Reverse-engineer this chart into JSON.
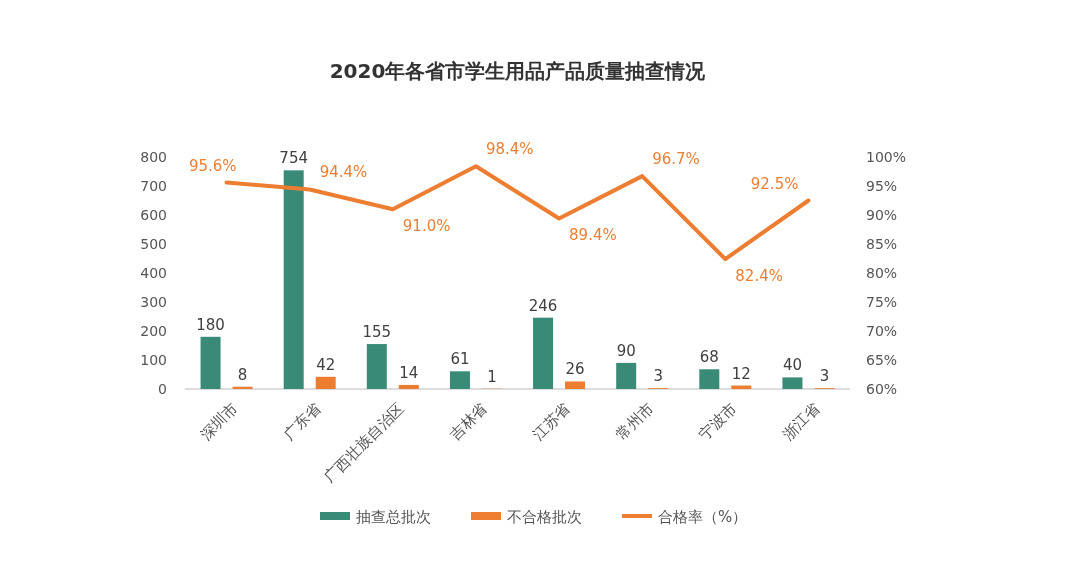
{
  "chart_data": {
    "type": "bar",
    "title": "2020年各省市学生用品产品质量抽查情况",
    "categories": [
      "深圳市",
      "广东省",
      "广西壮族自治区",
      "吉林省",
      "江苏省",
      "常州市",
      "宁波市",
      "浙江省"
    ],
    "series": [
      {
        "name": "抽查总批次",
        "color": "#3a8a78",
        "values": [
          180,
          754,
          155,
          61,
          246,
          90,
          68,
          40
        ],
        "value_labels": [
          "180",
          "754",
          "155",
          "61",
          "246",
          "90",
          "68",
          "40"
        ]
      },
      {
        "name": "不合格批次",
        "color": "#ed7d31",
        "values": [
          8,
          42,
          14,
          1,
          26,
          3,
          12,
          3
        ],
        "value_labels": [
          "8",
          "42",
          "14",
          "1",
          "26",
          "3",
          "12",
          "3"
        ]
      },
      {
        "name": "合格率（%）",
        "type": "line",
        "axis": "y2",
        "color": "#ed7d31",
        "values": [
          95.6,
          94.4,
          91.0,
          98.4,
          89.4,
          96.7,
          82.4,
          92.5
        ],
        "value_labels": [
          "95.6%",
          "94.4%",
          "91.0%",
          "98.4%",
          "89.4%",
          "96.7%",
          "82.4%",
          "92.5%"
        ]
      }
    ],
    "ylim": [
      0,
      800
    ],
    "yticks": [
      0,
      100,
      200,
      300,
      400,
      500,
      600,
      700,
      800
    ],
    "y2lim": [
      60,
      100
    ],
    "y2ticks": [
      {
        "value": 60,
        "label": "60%"
      },
      {
        "value": 65,
        "label": "65%"
      },
      {
        "value": 70,
        "label": "70%"
      },
      {
        "value": 75,
        "label": "75%"
      },
      {
        "value": 80,
        "label": "80%"
      },
      {
        "value": 85,
        "label": "85%"
      },
      {
        "value": 90,
        "label": "90%"
      },
      {
        "value": 95,
        "label": "95%"
      },
      {
        "value": 100,
        "label": "100%"
      }
    ],
    "grid": false,
    "legend": "bottom",
    "marker": "none"
  }
}
